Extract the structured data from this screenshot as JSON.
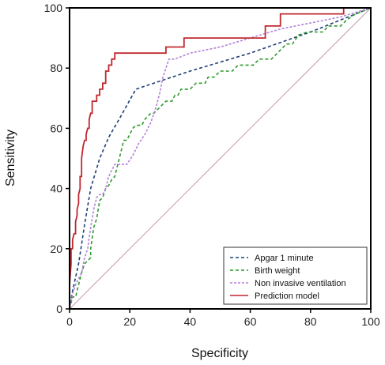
{
  "chart_data": {
    "type": "line",
    "xlabel": "Specificity",
    "ylabel": "Sensitivity",
    "xlim": [
      0,
      100
    ],
    "ylim": [
      0,
      100
    ],
    "xticks": [
      "0",
      "20",
      "40",
      "60",
      "80",
      "100"
    ],
    "yticks": [
      "0",
      "20",
      "40",
      "60",
      "80",
      "100"
    ],
    "grid": false,
    "legend_position": "bottom-right",
    "reference_line": {
      "color": "#c79ab0",
      "points": [
        [
          0,
          0
        ],
        [
          100,
          100
        ]
      ]
    },
    "series": [
      {
        "name": "Apgar 1 minute",
        "color": "#1f3f77",
        "dash": "4,3",
        "points": [
          [
            0,
            0
          ],
          [
            1,
            6
          ],
          [
            3,
            15
          ],
          [
            5,
            28
          ],
          [
            7,
            40
          ],
          [
            10,
            50
          ],
          [
            13,
            57
          ],
          [
            17,
            64
          ],
          [
            22,
            73
          ],
          [
            40,
            79
          ],
          [
            60,
            85
          ],
          [
            80,
            92
          ],
          [
            100,
            100
          ]
        ]
      },
      {
        "name": "Birth weight",
        "color": "#2d9a2d",
        "dash": "4,3",
        "points": [
          [
            0,
            0
          ],
          [
            1,
            4
          ],
          [
            2,
            4
          ],
          [
            3,
            8
          ],
          [
            4,
            12
          ],
          [
            5,
            15
          ],
          [
            6,
            16
          ],
          [
            7,
            17
          ],
          [
            7,
            20
          ],
          [
            8,
            27
          ],
          [
            9,
            30
          ],
          [
            10,
            36
          ],
          [
            11,
            37
          ],
          [
            12,
            40
          ],
          [
            13,
            41
          ],
          [
            14,
            43
          ],
          [
            15,
            44
          ],
          [
            16,
            48
          ],
          [
            18,
            56
          ],
          [
            19,
            56
          ],
          [
            20,
            58
          ],
          [
            21,
            60
          ],
          [
            22,
            61
          ],
          [
            24,
            61
          ],
          [
            25,
            63
          ],
          [
            26,
            64
          ],
          [
            27,
            65
          ],
          [
            28,
            65
          ],
          [
            30,
            67
          ],
          [
            32,
            69
          ],
          [
            33,
            69
          ],
          [
            34,
            69
          ],
          [
            35,
            71
          ],
          [
            36,
            71
          ],
          [
            37,
            73
          ],
          [
            40,
            73
          ],
          [
            42,
            75
          ],
          [
            45,
            75
          ],
          [
            46,
            77
          ],
          [
            48,
            77
          ],
          [
            50,
            79
          ],
          [
            52,
            79
          ],
          [
            54,
            79
          ],
          [
            56,
            81
          ],
          [
            59,
            81
          ],
          [
            61,
            81
          ],
          [
            63,
            83
          ],
          [
            65,
            83
          ],
          [
            67,
            83
          ],
          [
            69,
            85
          ],
          [
            70,
            86
          ],
          [
            72,
            88
          ],
          [
            74,
            88
          ],
          [
            76,
            91
          ],
          [
            79,
            92
          ],
          [
            81,
            92
          ],
          [
            84,
            92
          ],
          [
            86,
            94
          ],
          [
            90,
            94
          ],
          [
            92,
            96
          ],
          [
            95,
            98
          ],
          [
            100,
            100
          ]
        ]
      },
      {
        "name": "Non invasive ventilation",
        "color": "#b482d8",
        "dash": "3,2",
        "points": [
          [
            0,
            0
          ],
          [
            1,
            5
          ],
          [
            2,
            8
          ],
          [
            3,
            10
          ],
          [
            4,
            12
          ],
          [
            5,
            17
          ],
          [
            6,
            20
          ],
          [
            7,
            27
          ],
          [
            8,
            33
          ],
          [
            9,
            37
          ],
          [
            10,
            38
          ],
          [
            11,
            38
          ],
          [
            12,
            40
          ],
          [
            13,
            44
          ],
          [
            14,
            46
          ],
          [
            15,
            48
          ],
          [
            17,
            48
          ],
          [
            19,
            48
          ],
          [
            21,
            51
          ],
          [
            23,
            55
          ],
          [
            25,
            58
          ],
          [
            27,
            62
          ],
          [
            28,
            65
          ],
          [
            29,
            68
          ],
          [
            30,
            72
          ],
          [
            31,
            77
          ],
          [
            32,
            80
          ],
          [
            33,
            83
          ],
          [
            35,
            83
          ],
          [
            40,
            85
          ],
          [
            50,
            87
          ],
          [
            60,
            90
          ],
          [
            70,
            93
          ],
          [
            80,
            95
          ],
          [
            90,
            97
          ],
          [
            100,
            100
          ]
        ]
      },
      {
        "name": "Prediction model",
        "color": "#c0282e",
        "dash": "",
        "points": [
          [
            0,
            0
          ],
          [
            0,
            8
          ],
          [
            0.5,
            15
          ],
          [
            0.5,
            20
          ],
          [
            1,
            20
          ],
          [
            1,
            23
          ],
          [
            1.5,
            25
          ],
          [
            2,
            25
          ],
          [
            2,
            29
          ],
          [
            2.5,
            31
          ],
          [
            2.5,
            33
          ],
          [
            3,
            35
          ],
          [
            3,
            38
          ],
          [
            3.5,
            40
          ],
          [
            3.5,
            44
          ],
          [
            4,
            44
          ],
          [
            4,
            50
          ],
          [
            4.5,
            54
          ],
          [
            5,
            56
          ],
          [
            5.5,
            56
          ],
          [
            5.5,
            58
          ],
          [
            6,
            60
          ],
          [
            6.5,
            60
          ],
          [
            6.5,
            63
          ],
          [
            7,
            65
          ],
          [
            7.5,
            65
          ],
          [
            7.5,
            69
          ],
          [
            9,
            69
          ],
          [
            9,
            71
          ],
          [
            10,
            71
          ],
          [
            10,
            73
          ],
          [
            11,
            73
          ],
          [
            11,
            75
          ],
          [
            12,
            75
          ],
          [
            12,
            79
          ],
          [
            13,
            79
          ],
          [
            13,
            81
          ],
          [
            14,
            81
          ],
          [
            14,
            83
          ],
          [
            15,
            83
          ],
          [
            15,
            85
          ],
          [
            32,
            85
          ],
          [
            32,
            87
          ],
          [
            38,
            87
          ],
          [
            38,
            90
          ],
          [
            65,
            90
          ],
          [
            65,
            94
          ],
          [
            70,
            94
          ],
          [
            70,
            98
          ],
          [
            91,
            98
          ],
          [
            91,
            100
          ],
          [
            100,
            100
          ]
        ]
      }
    ]
  }
}
